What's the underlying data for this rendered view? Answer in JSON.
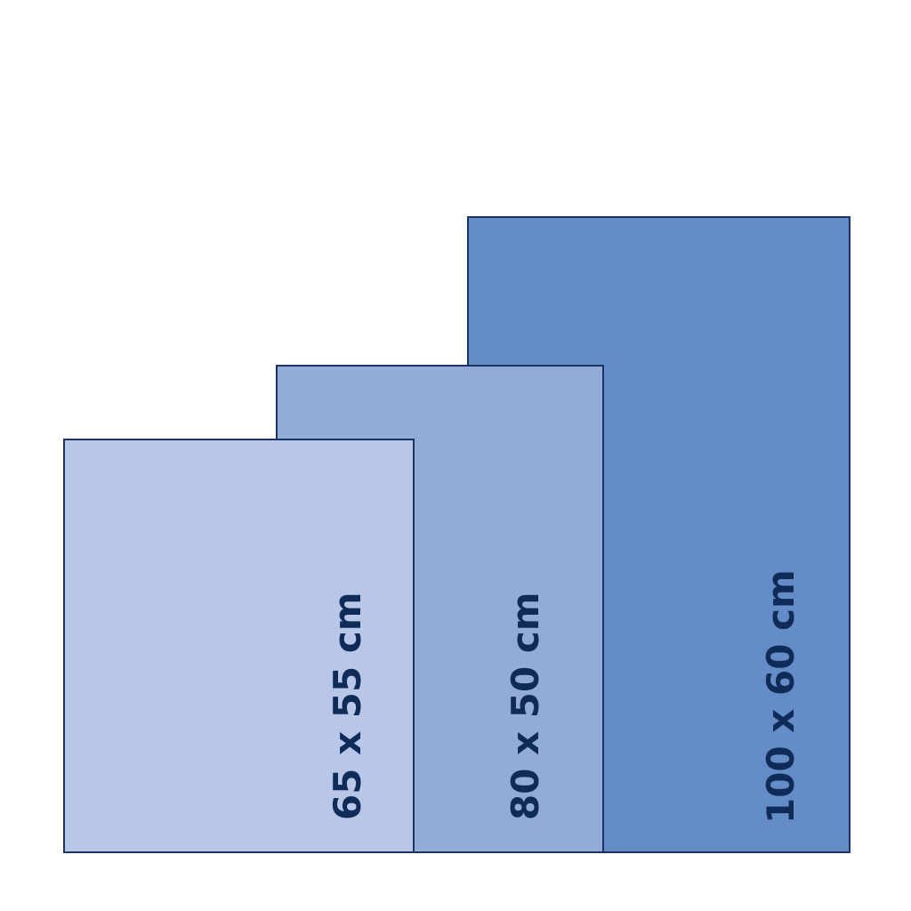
{
  "sizes": [
    {
      "label": "100 x 60 cm",
      "color": "#648dc8"
    },
    {
      "label": "80 x 50 cm",
      "color": "#93abd9"
    },
    {
      "label": "65 x 55 cm",
      "color": "#b8c7e8"
    }
  ],
  "border_color": "#1a3564",
  "text_color": "#0f2b58"
}
